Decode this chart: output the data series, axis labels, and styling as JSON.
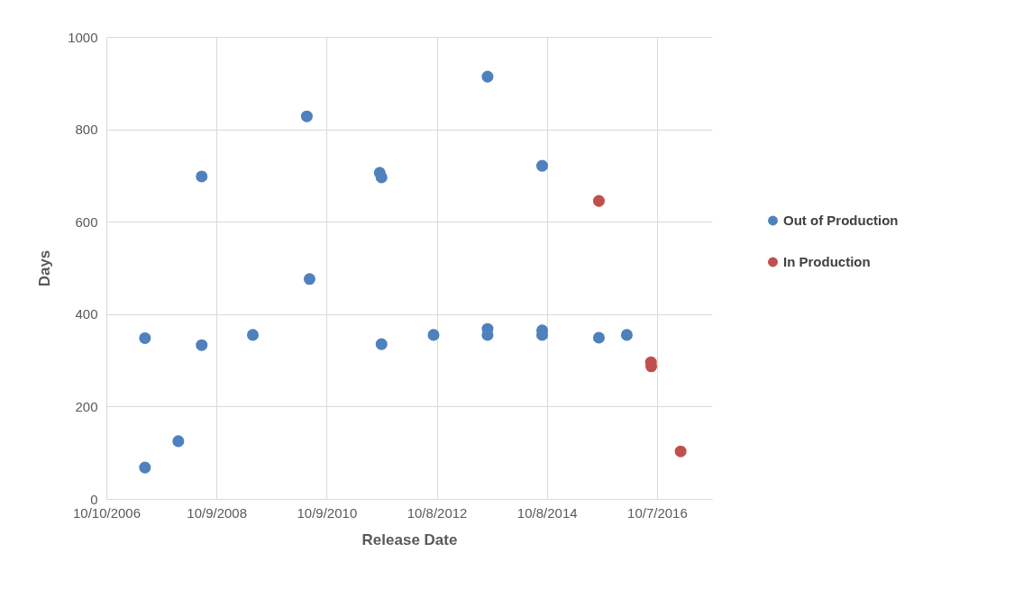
{
  "chart_data": {
    "type": "scatter",
    "xlabel": "Release Date",
    "ylabel": "Days",
    "xlim": [
      "2006-10-10",
      "2017-10-07"
    ],
    "ylim": [
      0,
      1000
    ],
    "xticks": [
      {
        "value": "2006-10-10",
        "label": "10/10/2006"
      },
      {
        "value": "2008-10-09",
        "label": "10/9/2008"
      },
      {
        "value": "2010-10-09",
        "label": "10/9/2010"
      },
      {
        "value": "2012-10-08",
        "label": "10/8/2012"
      },
      {
        "value": "2014-10-08",
        "label": "10/8/2014"
      },
      {
        "value": "2016-10-07",
        "label": "10/7/2016"
      }
    ],
    "yticks": [
      0,
      200,
      400,
      600,
      800,
      1000
    ],
    "grid": true,
    "legend": "right",
    "marker": "circle",
    "series": [
      {
        "name": "Out of Production",
        "color": "#4f81bd",
        "x": [
          "2007-06-23",
          "2007-06-23",
          "2008-01-30",
          "2008-07-03",
          "2008-07-03",
          "2009-06-07",
          "2010-05-31",
          "2010-06-18",
          "2011-09-26",
          "2011-10-08",
          "2011-10-08",
          "2012-09-17",
          "2013-09-10",
          "2013-09-10",
          "2013-09-10",
          "2014-09-07",
          "2014-09-07",
          "2014-09-07",
          "2015-09-18",
          "2016-03-21"
        ],
        "values": [
          68,
          348,
          125,
          698,
          333,
          355,
          828,
          476,
          706,
          696,
          335,
          355,
          914,
          368,
          355,
          721,
          365,
          355,
          349,
          355
        ]
      },
      {
        "name": "In Production",
        "color": "#c0504d",
        "x": [
          "2015-09-18",
          "2016-08-28",
          "2016-08-30",
          "2017-03-13"
        ],
        "values": [
          645,
          296,
          287,
          103
        ]
      }
    ]
  }
}
